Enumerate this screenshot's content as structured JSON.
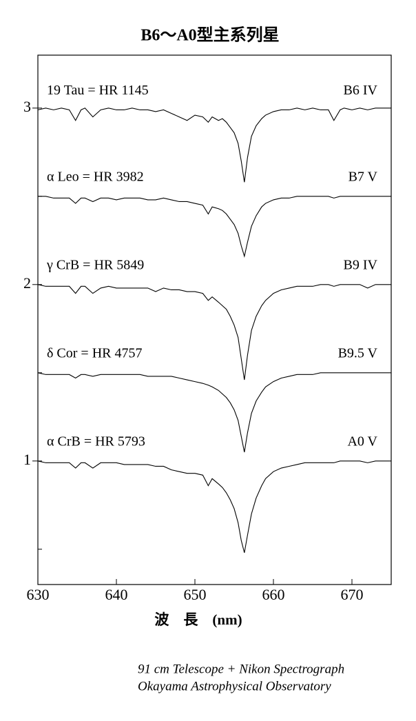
{
  "chart_data": {
    "type": "line",
    "title": "B6～A0型主系列星",
    "x_label": "波　長　(nm)",
    "footer": [
      "91 cm Telescope + Nikon Spectrograph",
      "Okayama Astrophysical Observatory"
    ],
    "xlim": [
      630,
      675
    ],
    "xticks": [
      630,
      640,
      650,
      660,
      670
    ],
    "ylim": [
      0.3,
      3.3
    ],
    "yticks": [
      1,
      2,
      3
    ],
    "yminorticks": [
      0.5,
      1.5,
      2.5
    ],
    "x": [
      630,
      631,
      632,
      633,
      634,
      634.8,
      635.5,
      636,
      637,
      638,
      639,
      640,
      641,
      642,
      643,
      644,
      645,
      646,
      647,
      648,
      649,
      650,
      651,
      651.7,
      652.2,
      653,
      653.5,
      654,
      654.5,
      655,
      655.5,
      655.9,
      656.3,
      656.7,
      657.2,
      657.8,
      658.5,
      659,
      660,
      661,
      662,
      663,
      664,
      665,
      666,
      667,
      667.7,
      668.5,
      669,
      670,
      671,
      672,
      673,
      674,
      675
    ],
    "series": [
      {
        "name": "19 Tau = HR 1145",
        "spectral_type": "B6 IV",
        "color": "#000000",
        "values": [
          2.99,
          3.0,
          2.99,
          3.0,
          2.99,
          2.93,
          2.99,
          3.0,
          2.95,
          2.99,
          3.0,
          2.99,
          2.99,
          3.0,
          2.99,
          2.99,
          2.98,
          2.99,
          2.97,
          2.95,
          2.93,
          2.96,
          2.95,
          2.92,
          2.95,
          2.93,
          2.94,
          2.92,
          2.89,
          2.86,
          2.8,
          2.7,
          2.58,
          2.72,
          2.84,
          2.9,
          2.94,
          2.96,
          2.98,
          2.99,
          2.99,
          3.0,
          2.99,
          3.0,
          2.99,
          2.99,
          2.93,
          2.99,
          3.0,
          2.99,
          3.0,
          2.99,
          3.0,
          3.0,
          3.0
        ]
      },
      {
        "name": "α Leo = HR 3982",
        "spectral_type": "B7 V",
        "color": "#000000",
        "values": [
          2.5,
          2.5,
          2.49,
          2.49,
          2.49,
          2.46,
          2.49,
          2.49,
          2.47,
          2.49,
          2.49,
          2.48,
          2.49,
          2.49,
          2.49,
          2.48,
          2.48,
          2.49,
          2.48,
          2.47,
          2.47,
          2.46,
          2.45,
          2.4,
          2.44,
          2.43,
          2.42,
          2.4,
          2.37,
          2.34,
          2.29,
          2.22,
          2.16,
          2.24,
          2.33,
          2.39,
          2.44,
          2.46,
          2.48,
          2.49,
          2.49,
          2.5,
          2.5,
          2.5,
          2.5,
          2.5,
          2.49,
          2.5,
          2.5,
          2.5,
          2.5,
          2.5,
          2.5,
          2.5,
          2.5
        ]
      },
      {
        "name": "γ CrB = HR 5849",
        "spectral_type": "B9 IV",
        "color": "#000000",
        "values": [
          2.0,
          1.99,
          1.99,
          1.99,
          1.99,
          1.95,
          1.99,
          1.99,
          1.95,
          1.98,
          1.99,
          1.98,
          1.98,
          1.98,
          1.98,
          1.98,
          1.96,
          1.98,
          1.97,
          1.97,
          1.96,
          1.96,
          1.95,
          1.91,
          1.93,
          1.9,
          1.88,
          1.86,
          1.82,
          1.77,
          1.7,
          1.58,
          1.46,
          1.6,
          1.74,
          1.82,
          1.88,
          1.91,
          1.95,
          1.97,
          1.98,
          1.99,
          1.99,
          1.99,
          2.0,
          2.0,
          1.99,
          2.0,
          2.0,
          2.0,
          2.0,
          1.98,
          2.0,
          2.0,
          2.0
        ]
      },
      {
        "name": "δ Cor = HR 4757",
        "spectral_type": "B9.5 V",
        "color": "#000000",
        "values": [
          1.5,
          1.49,
          1.49,
          1.49,
          1.49,
          1.47,
          1.49,
          1.49,
          1.48,
          1.49,
          1.49,
          1.49,
          1.49,
          1.49,
          1.49,
          1.48,
          1.48,
          1.48,
          1.48,
          1.47,
          1.46,
          1.45,
          1.44,
          1.43,
          1.42,
          1.4,
          1.38,
          1.36,
          1.33,
          1.29,
          1.23,
          1.14,
          1.05,
          1.16,
          1.27,
          1.34,
          1.39,
          1.42,
          1.45,
          1.47,
          1.48,
          1.49,
          1.49,
          1.49,
          1.5,
          1.5,
          1.5,
          1.5,
          1.5,
          1.5,
          1.5,
          1.5,
          1.5,
          1.5,
          1.5
        ]
      },
      {
        "name": "α CrB = HR 5793",
        "spectral_type": "A0 V",
        "color": "#000000",
        "values": [
          1.0,
          0.99,
          0.99,
          0.99,
          0.99,
          0.96,
          0.99,
          0.99,
          0.96,
          0.99,
          0.99,
          0.99,
          0.98,
          0.98,
          0.98,
          0.98,
          0.97,
          0.97,
          0.95,
          0.94,
          0.93,
          0.93,
          0.92,
          0.86,
          0.9,
          0.87,
          0.85,
          0.82,
          0.78,
          0.73,
          0.65,
          0.55,
          0.48,
          0.58,
          0.7,
          0.79,
          0.86,
          0.9,
          0.94,
          0.96,
          0.97,
          0.98,
          0.99,
          0.99,
          0.99,
          0.99,
          0.99,
          1.0,
          1.0,
          1.0,
          1.0,
          0.99,
          1.0,
          1.0,
          1.0
        ]
      }
    ]
  }
}
